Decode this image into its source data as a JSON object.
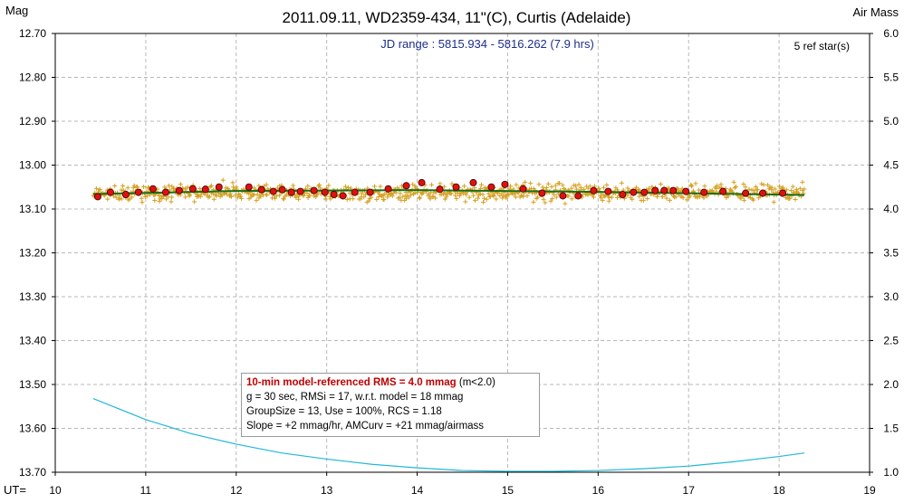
{
  "chart_data": {
    "type": "scatter",
    "title": "2011.09.11, WD2359-434, 11\"(C), Curtis (Adelaide)",
    "ylabel_left": "Mag",
    "ylabel_right": "Air Mass",
    "xlabel": "UT=",
    "subtitle": "JD range : 5815.934 - 5816.262 (7.9 hrs)",
    "ref_stars": "5 ref star(s)",
    "xlim": [
      10,
      19
    ],
    "ylim": [
      12.7,
      13.7
    ],
    "y_inverted": true,
    "y2lim": [
      1.0,
      6.0
    ],
    "x_ticks": [
      "10",
      "11",
      "12",
      "13",
      "14",
      "15",
      "16",
      "17",
      "18",
      "19"
    ],
    "y_ticks": [
      "12.70",
      "12.80",
      "12.90",
      "13.00",
      "13.10",
      "13.20",
      "13.30",
      "13.40",
      "13.50",
      "13.60",
      "13.70"
    ],
    "y2_ticks": [
      "6.0",
      "5.5",
      "5.0",
      "4.5",
      "4.0",
      "3.5",
      "3.0",
      "2.5",
      "2.0",
      "1.5",
      "1.0"
    ],
    "grid": true,
    "raw_points": {
      "x_start": 10.42,
      "x_end": 18.28,
      "count": 900,
      "mean_mag": 13.063,
      "scatter_mag": 0.017,
      "color": "#d4a020"
    },
    "group_means": {
      "color": "#e01010",
      "x": [
        10.47,
        10.61,
        10.78,
        10.92,
        11.08,
        11.22,
        11.37,
        11.52,
        11.66,
        11.81,
        12.14,
        12.28,
        12.41,
        12.51,
        12.61,
        12.71,
        12.86,
        12.98,
        13.08,
        13.18,
        13.31,
        13.48,
        13.68,
        13.88,
        14.05,
        14.25,
        14.43,
        14.62,
        14.82,
        14.97,
        15.17,
        15.38,
        15.61,
        15.78,
        15.95,
        16.11,
        16.27,
        16.39,
        16.51,
        16.63,
        16.73,
        16.83,
        16.97,
        17.17,
        17.38,
        17.63,
        17.82,
        18.04
      ],
      "y": [
        13.072,
        13.062,
        13.067,
        13.062,
        13.054,
        13.062,
        13.058,
        13.054,
        13.055,
        13.05,
        13.05,
        13.056,
        13.06,
        13.056,
        13.062,
        13.06,
        13.058,
        13.062,
        13.067,
        13.07,
        13.062,
        13.062,
        13.054,
        13.047,
        13.04,
        13.055,
        13.05,
        13.04,
        13.05,
        13.044,
        13.054,
        13.064,
        13.07,
        13.07,
        13.058,
        13.06,
        13.067,
        13.062,
        13.062,
        13.058,
        13.058,
        13.058,
        13.06,
        13.062,
        13.06,
        13.064,
        13.064,
        13.064
      ]
    },
    "model_line": {
      "color": "#1a6e1a",
      "x": [
        10.42,
        12.0,
        14.0,
        16.0,
        18.28
      ],
      "y": [
        13.066,
        13.059,
        13.057,
        13.061,
        13.068
      ]
    },
    "airmass_curve": {
      "color": "#22b8d8",
      "x": [
        10.42,
        11.0,
        11.5,
        12.0,
        12.5,
        13.0,
        13.5,
        14.0,
        14.5,
        15.0,
        15.5,
        16.0,
        16.5,
        17.0,
        17.5,
        18.0,
        18.28
      ],
      "y": [
        1.84,
        1.6,
        1.44,
        1.32,
        1.22,
        1.15,
        1.09,
        1.05,
        1.02,
        1.01,
        1.01,
        1.02,
        1.04,
        1.07,
        1.12,
        1.18,
        1.22
      ]
    }
  },
  "legend": {
    "rms_line": "10-min model-referenced RMS = 4.0 mmag",
    "rms_suffix": "(m<2.0)",
    "line2": "g = 30 sec, RMSi = 17, w.r.t. model = 18 mmag",
    "line3": "GroupSize = 13, Use = 100%, RCS = 1.18",
    "line4": "Slope = +2 mmag/hr, AMCurv = +21 mmag/airmass"
  }
}
